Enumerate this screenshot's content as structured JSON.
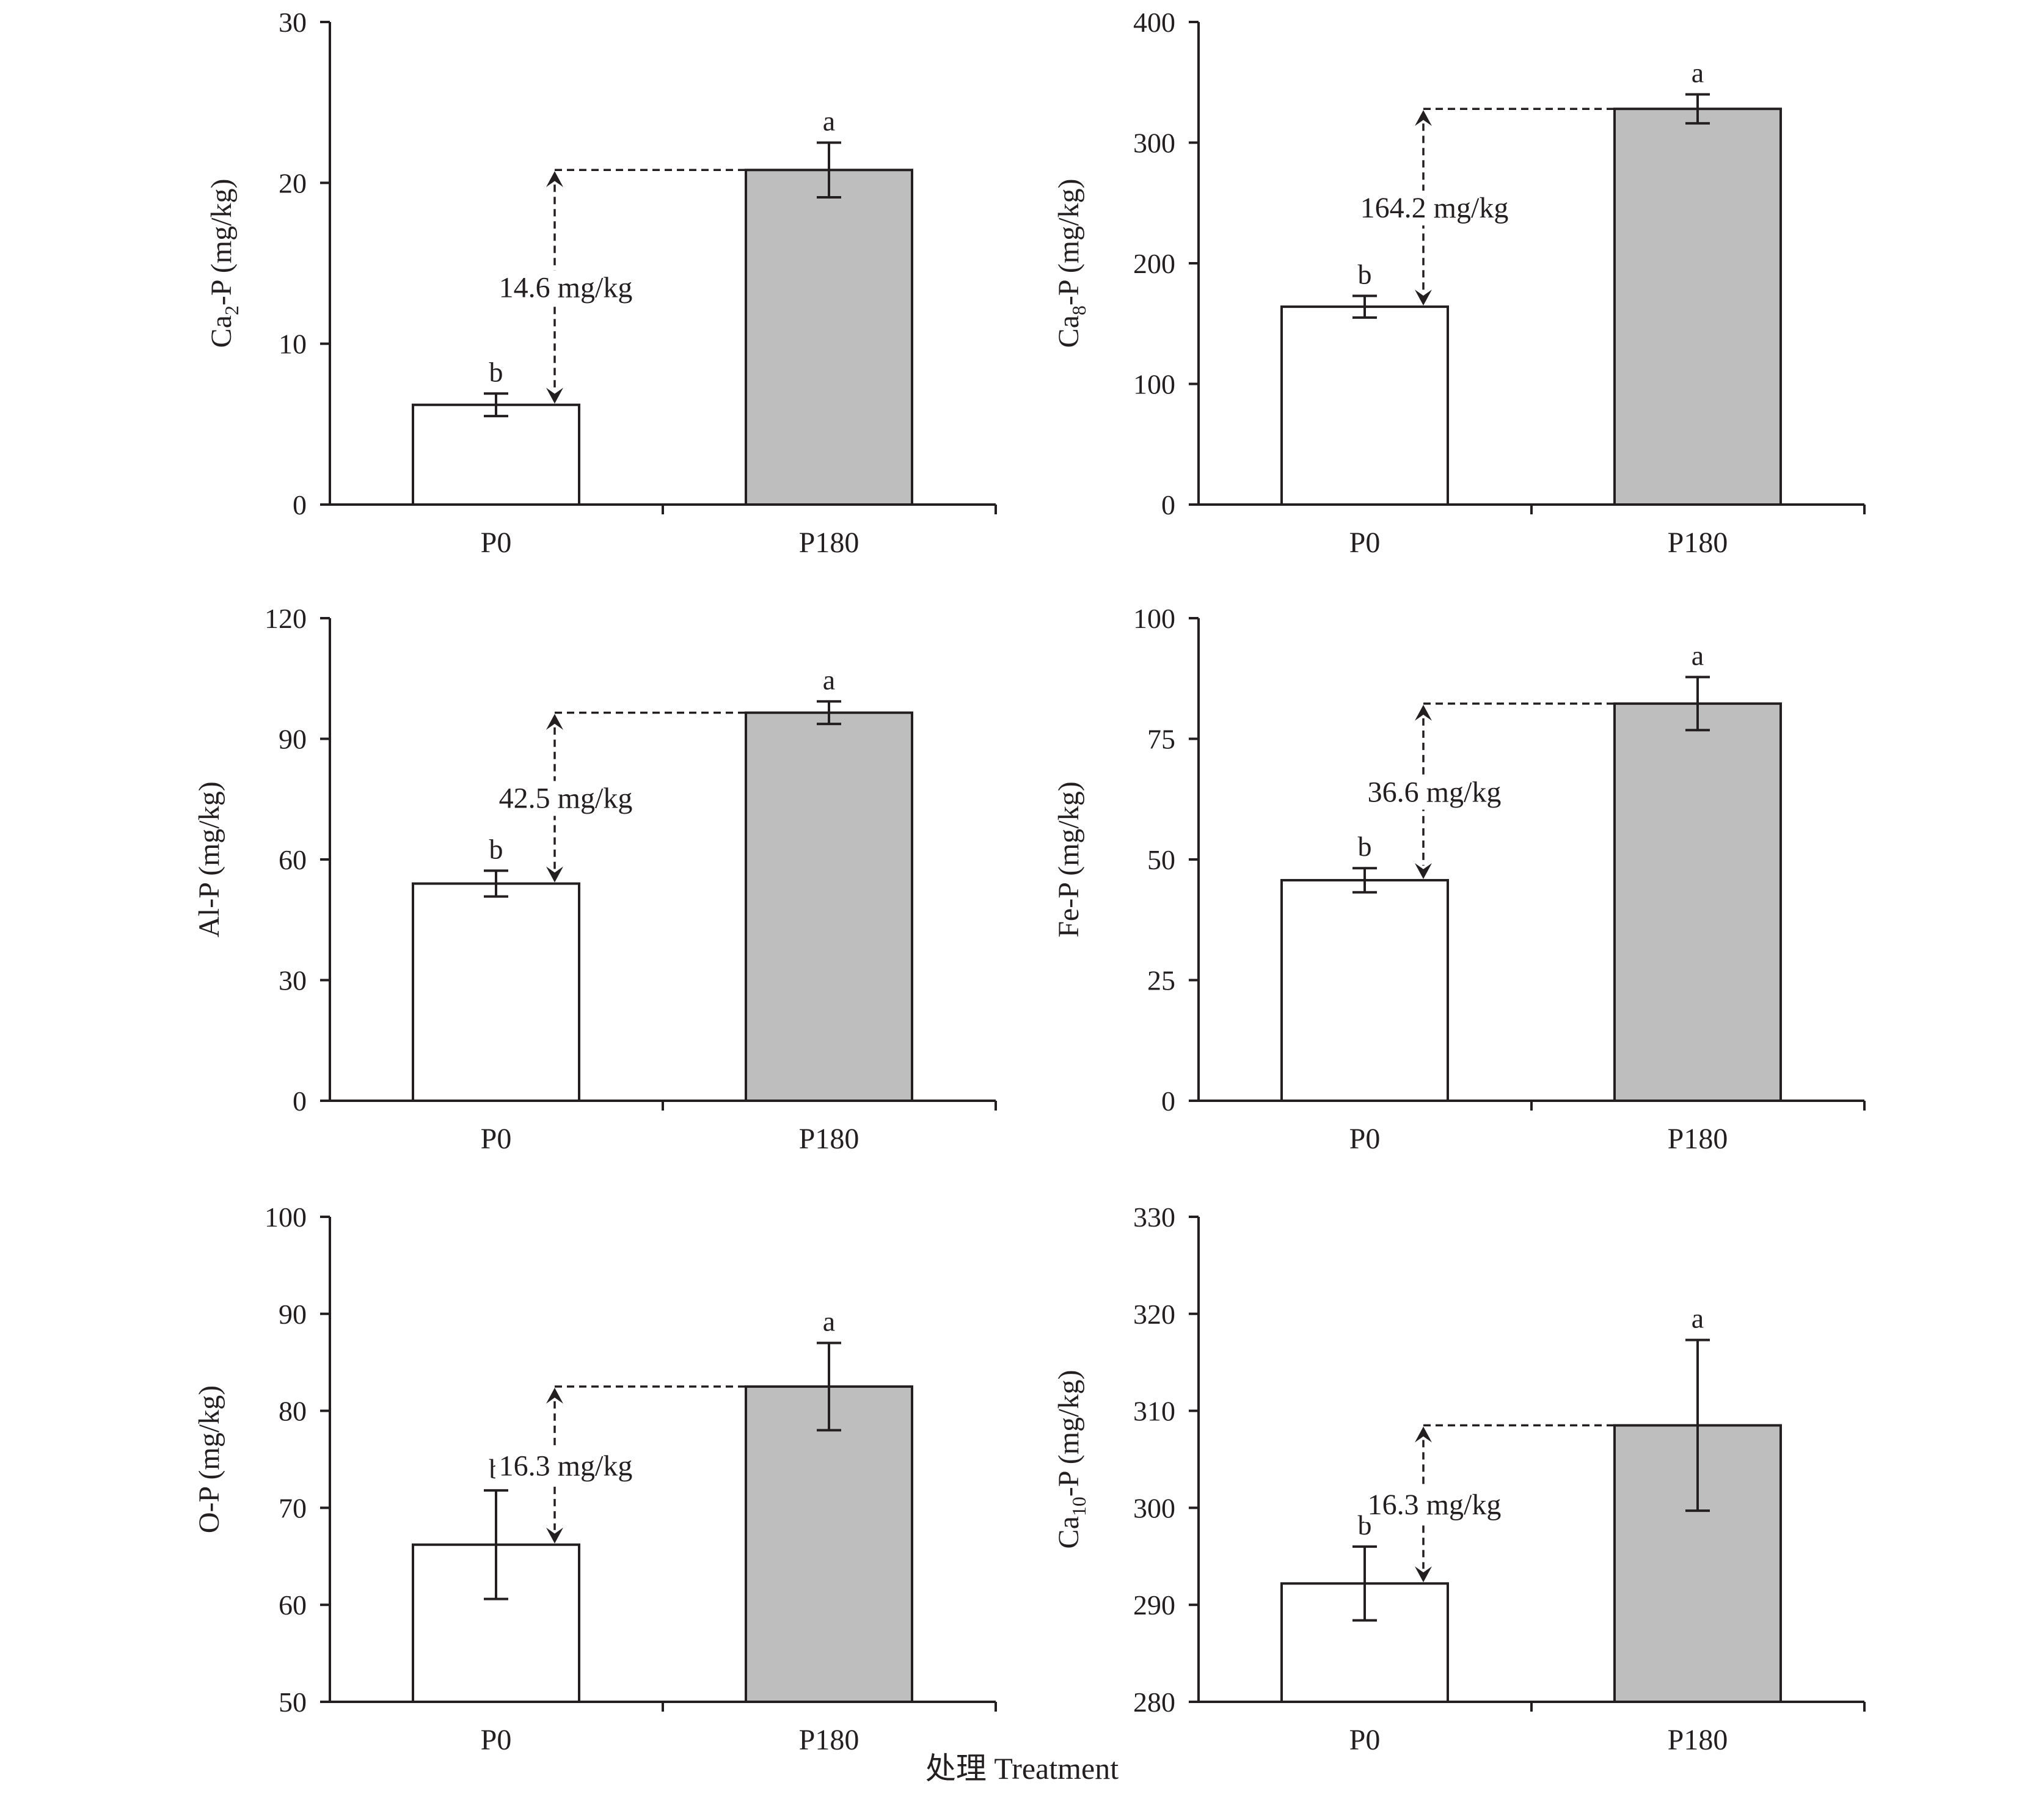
{
  "colors": {
    "axis": "#231f20",
    "bar_p0": "#ffffff",
    "bar_p180": "#bebebe",
    "bar_stroke": "#231f20"
  },
  "x_title": "处理 Treatment",
  "chart_data": [
    {
      "type": "bar",
      "ylabel_main": "Ca",
      "ylabel_sub": "2",
      "ylabel_rest": "-P (mg/kg)",
      "ylim": [
        0,
        30
      ],
      "yticks": [
        "0",
        "10",
        "20",
        "30"
      ],
      "categories": [
        "P0",
        "P180"
      ],
      "values": [
        6.2,
        20.8
      ],
      "errors": [
        0.7,
        1.7
      ],
      "significance": [
        "b",
        "a"
      ],
      "difference_label": "14.6 mg/kg"
    },
    {
      "type": "bar",
      "ylabel_main": "Ca",
      "ylabel_sub": "8",
      "ylabel_rest": "-P (mg/kg)",
      "ylim": [
        0,
        400
      ],
      "yticks": [
        "0",
        "100",
        "200",
        "300",
        "400"
      ],
      "categories": [
        "P0",
        "P180"
      ],
      "values": [
        164,
        328
      ],
      "errors": [
        9,
        12
      ],
      "significance": [
        "b",
        "a"
      ],
      "difference_label": "164.2 mg/kg"
    },
    {
      "type": "bar",
      "ylabel_main": "Al-P (mg/kg)",
      "ylabel_sub": "",
      "ylabel_rest": "",
      "ylim": [
        0,
        120
      ],
      "yticks": [
        "0",
        "30",
        "60",
        "90",
        "120"
      ],
      "categories": [
        "P0",
        "P180"
      ],
      "values": [
        54,
        96.5
      ],
      "errors": [
        3.2,
        2.8
      ],
      "significance": [
        "b",
        "a"
      ],
      "difference_label": "42.5 mg/kg"
    },
    {
      "type": "bar",
      "ylabel_main": "Fe-P (mg/kg)",
      "ylabel_sub": "",
      "ylabel_rest": "",
      "ylim": [
        0,
        100
      ],
      "yticks": [
        "0",
        "25",
        "50",
        "75",
        "100"
      ],
      "categories": [
        "P0",
        "P180"
      ],
      "values": [
        45.7,
        82.3
      ],
      "errors": [
        2.5,
        5.5
      ],
      "significance": [
        "b",
        "a"
      ],
      "difference_label": "36.6 mg/kg"
    },
    {
      "type": "bar",
      "ylabel_main": "O-P (mg/kg)",
      "ylabel_sub": "",
      "ylabel_rest": "",
      "ylim": [
        50,
        100
      ],
      "yticks": [
        "50",
        "60",
        "70",
        "80",
        "90",
        "100"
      ],
      "categories": [
        "P0",
        "P180"
      ],
      "values": [
        66.2,
        82.5
      ],
      "errors": [
        5.6,
        4.5
      ],
      "significance": [
        "b",
        "a"
      ],
      "difference_label": "16.3 mg/kg"
    },
    {
      "type": "bar",
      "ylabel_main": "Ca",
      "ylabel_sub": "10",
      "ylabel_rest": "-P (mg/kg)",
      "ylim": [
        280,
        330
      ],
      "yticks": [
        "280",
        "290",
        "300",
        "310",
        "320",
        "330"
      ],
      "categories": [
        "P0",
        "P180"
      ],
      "values": [
        292.2,
        308.5
      ],
      "errors": [
        3.8,
        8.8
      ],
      "significance": [
        "b",
        "a"
      ],
      "difference_label": "16.3 mg/kg"
    }
  ]
}
